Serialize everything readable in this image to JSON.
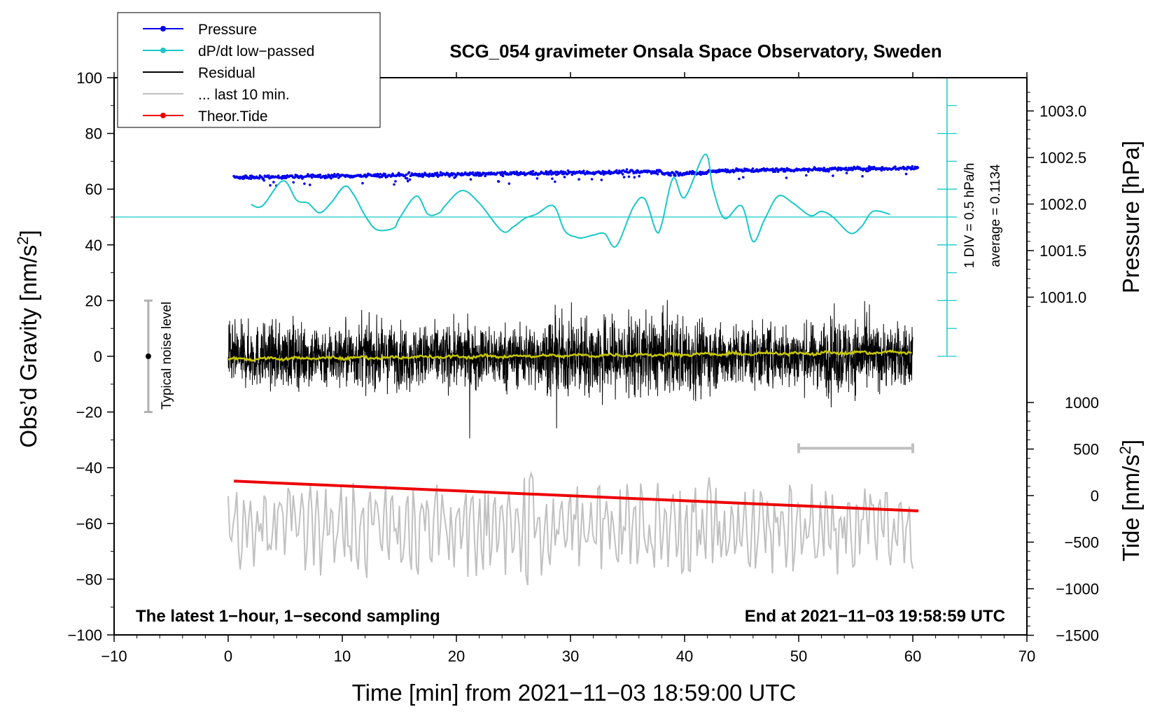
{
  "chart_data": {
    "type": "line",
    "title": "SCG_054 gravimeter Onsala Space Observatory, Sweden",
    "xlabel": "Time [min] from 2021−11−03 18:59:00 UTC",
    "ylabel_left": "Obs’d Gravity [nm/s²]",
    "ylabel_left_main": "Obs’d Gravity [nm/s",
    "ylabel_left_sup": "2",
    "ylabel_left_end": "]",
    "ylabel_right_top": "Pressure [hPa]",
    "ylabel_right_bottom": "Tide [nm/s²]",
    "ylabel_right_bottom_main": "Tide [nm/s",
    "ylabel_right_bottom_sup": "2",
    "ylabel_right_bottom_end": "]",
    "xlim": [
      -10,
      70
    ],
    "ylim": [
      -100,
      100
    ],
    "pressure_axis": {
      "ticks": [
        1001.0,
        1001.5,
        1002.0,
        1002.5,
        1003.0
      ],
      "labels": [
        "1001.0",
        "1001.5",
        "1002.0",
        "1002.5",
        "1003.0"
      ]
    },
    "tide_axis": {
      "ticks": [
        1000,
        500,
        0,
        -500,
        -1000,
        -1500
      ],
      "labels": [
        "1000",
        "500",
        "0",
        "−500",
        "−1000",
        "−1500"
      ]
    },
    "x_ticks": [
      -10,
      0,
      10,
      20,
      30,
      40,
      50,
      60,
      70
    ],
    "x_tick_labels": [
      "−10",
      "0",
      "10",
      "20",
      "30",
      "40",
      "50",
      "60",
      "70"
    ],
    "y_ticks": [
      -100,
      -80,
      -60,
      -40,
      -20,
      0,
      20,
      40,
      60,
      80,
      100
    ],
    "y_tick_labels": [
      "−100",
      "−80",
      "−60",
      "−40",
      "−20",
      "0",
      "20",
      "40",
      "60",
      "80",
      "100"
    ],
    "legend": [
      {
        "label": "Pressure",
        "color": "#0000ee",
        "marker": true
      },
      {
        "label": "dP/dt low−passed",
        "color": "#19c8c8",
        "marker": true
      },
      {
        "label": "Residual",
        "color": "#000000",
        "marker": false
      },
      {
        "label": "... last 10 min.",
        "color": "#c0c0c0",
        "marker": false
      },
      {
        "label": "Theor.Tide",
        "color": "#ee0000",
        "marker": true
      }
    ],
    "annotations": {
      "left_bottom": "The latest 1−hour, 1−second sampling",
      "right_bottom": "End at 2021−11−03 19:58:59 UTC",
      "noise_label": "Typical noise level",
      "div_label": "1 DIV = 0.5 hPa/h",
      "average_label": "average = 0.1134"
    },
    "noise_bar": {
      "x": -7,
      "y_center": 0,
      "y_range": [
        -20,
        20
      ]
    },
    "last10_bar": {
      "x_range": [
        50,
        60
      ],
      "y": -33
    },
    "dpdt_axis": {
      "x": 63,
      "y_range": [
        0,
        100
      ],
      "baseline_y": 50
    },
    "series": [
      {
        "name": "Pressure",
        "color": "#0000ee",
        "x_range": [
          0.5,
          60.5
        ],
        "y_start": 64.2,
        "y_end": 67.6,
        "mid_bump": 0.8
      },
      {
        "name": "dP/dt low-passed",
        "color": "#19c8c8",
        "x": [
          2,
          3,
          4.8,
          6,
          7,
          8,
          9,
          10.2,
          11,
          12,
          13,
          14.5,
          15,
          16.5,
          17.5,
          18.5,
          19,
          20.5,
          22,
          24,
          25,
          26,
          27,
          28.5,
          29.5,
          30.5,
          31,
          32,
          33,
          34,
          35.5,
          36.5,
          37.5,
          38,
          39,
          40,
          41.8,
          42.5,
          43.5,
          45,
          46,
          47,
          48.2,
          49.5,
          51,
          52,
          53,
          54.5,
          55.5,
          56.5,
          58
        ],
        "y": [
          54.5,
          54,
          63,
          56,
          55,
          51.5,
          55,
          61,
          58,
          50.5,
          45.5,
          46,
          49.5,
          57.5,
          51,
          51.5,
          54,
          59.5,
          55,
          45,
          46.5,
          49.5,
          51,
          54,
          45,
          42.8,
          42.5,
          43.5,
          44,
          39.5,
          53.5,
          56.5,
          45,
          47.5,
          64,
          57,
          72.5,
          60,
          49.5,
          54,
          41.2,
          49,
          57.5,
          55,
          50.5,
          52,
          50,
          44.2,
          46.5,
          52,
          51
        ]
      },
      {
        "name": "Residual",
        "color": "#000000",
        "x_range": [
          0,
          60
        ],
        "amplitude": 10
      },
      {
        "name": "Residual running mean",
        "color": "#c8c800",
        "x_range": [
          0,
          60
        ],
        "y_start": -1,
        "y_end": 1.5
      },
      {
        "name": "... last 10 min.",
        "color": "#c0c0c0",
        "x_range": [
          0,
          60
        ],
        "y_center": -62,
        "amplitude": 12
      },
      {
        "name": "Theor.Tide",
        "color": "#ee0000",
        "x_range": [
          0.5,
          60.5
        ],
        "y_start": -44.8,
        "y_end": -55.5
      }
    ]
  }
}
